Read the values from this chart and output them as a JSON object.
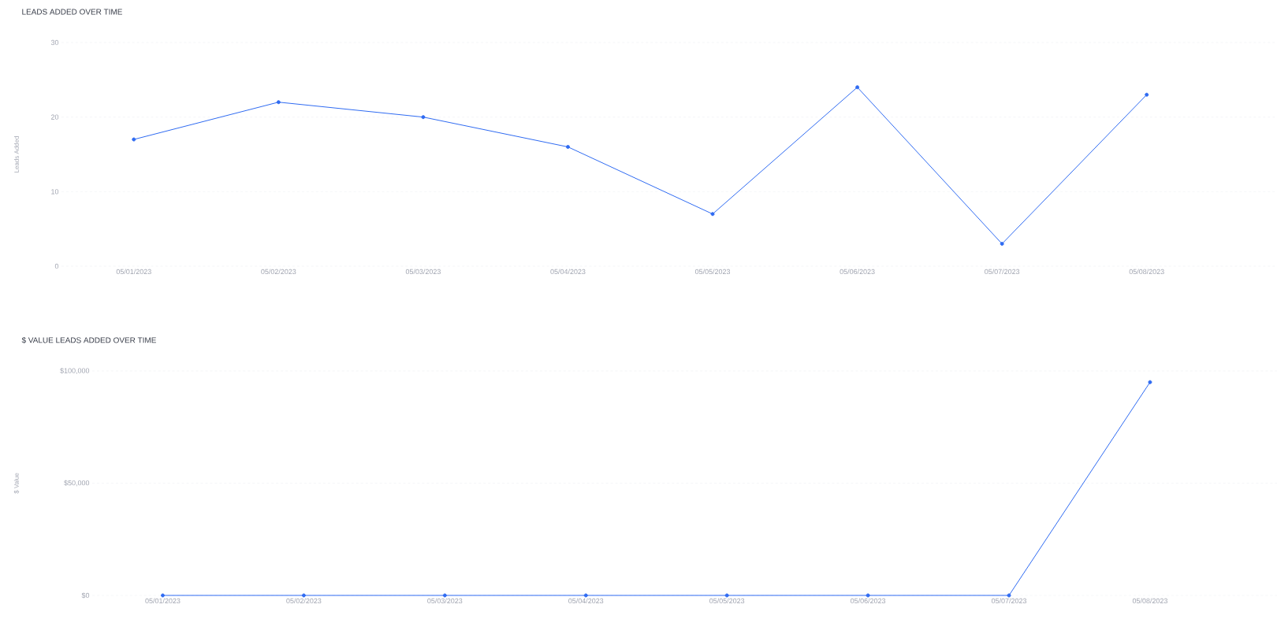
{
  "chart_data": [
    {
      "type": "line",
      "title": "LEADS ADDED OVER TIME",
      "ylabel": "Leads Added",
      "categories": [
        "05/01/2023",
        "05/02/2023",
        "05/03/2023",
        "05/04/2023",
        "05/05/2023",
        "05/06/2023",
        "05/07/2023",
        "05/08/2023"
      ],
      "values": [
        17,
        22,
        20,
        16,
        7,
        24,
        3,
        23
      ],
      "color": "#2f6bf2",
      "ylim": [
        0,
        30
      ],
      "yticks": [
        0,
        10,
        20,
        30
      ],
      "grid": "y",
      "marker": "circle"
    },
    {
      "type": "line",
      "title": "$ VALUE LEADS ADDED OVER TIME",
      "ylabel": "$ Value",
      "categories": [
        "05/01/2023",
        "05/02/2023",
        "05/03/2023",
        "05/04/2023",
        "05/05/2023",
        "05/06/2023",
        "05/07/2023",
        "05/08/2023"
      ],
      "values": [
        0,
        0,
        0,
        0,
        0,
        0,
        0,
        95000
      ],
      "color": "#2f6bf2",
      "ylim": [
        0,
        100000
      ],
      "yticks": [
        {
          "value": 0,
          "label": "$0"
        },
        {
          "value": 50000,
          "label": "$50,000"
        },
        {
          "value": 100000,
          "label": "$100,000"
        }
      ],
      "grid": "y",
      "marker": "circle"
    }
  ]
}
